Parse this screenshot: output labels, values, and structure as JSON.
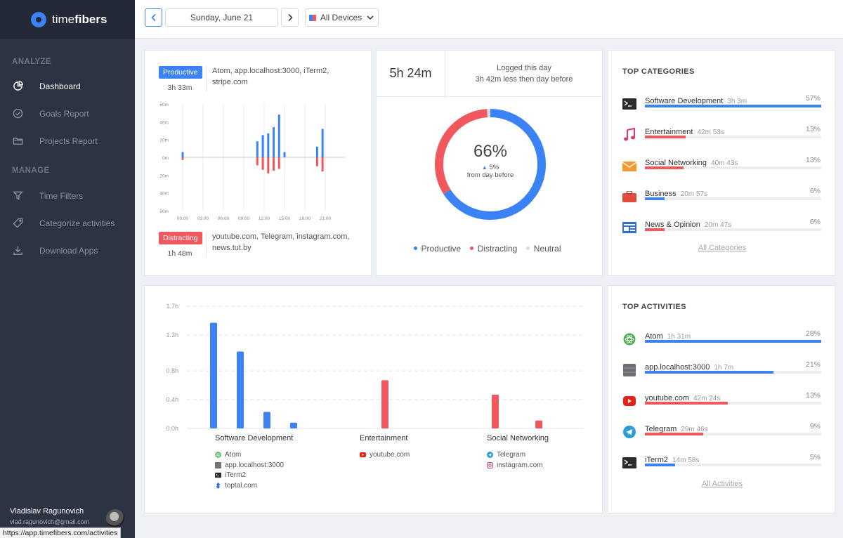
{
  "app": {
    "brand_bold": "time",
    "brand_rest": "fibers"
  },
  "sidebar": {
    "sections": [
      {
        "title": "ANALYZE",
        "items": [
          {
            "label": "Dashboard",
            "icon": "pie-chart-icon"
          },
          {
            "label": "Goals Report",
            "icon": "check-circle-icon"
          },
          {
            "label": "Projects Report",
            "icon": "folder-icon"
          }
        ]
      },
      {
        "title": "MANAGE",
        "items": [
          {
            "label": "Time Filters",
            "icon": "filter-icon"
          },
          {
            "label": "Categorize activities",
            "icon": "tag-icon"
          },
          {
            "label": "Download Apps",
            "icon": "download-icon"
          }
        ]
      }
    ],
    "user": {
      "name": "Vladislav Ragunovich",
      "email": "vlad.ragunovich@gmail.com"
    },
    "status_url": "https://app.timefibers.com/activities"
  },
  "topbar": {
    "date": "Sunday, June 21",
    "device_filter": "All Devices"
  },
  "productivity_card": {
    "productive": {
      "label": "Productive",
      "time": "3h 33m",
      "apps": "Atom, app.localhost:3000, iTerm2, stripe.com"
    },
    "distracting": {
      "label": "Distracting",
      "time": "1h 48m",
      "apps": "youtube.com, Telegram, instagram.com, news.tut.by"
    },
    "y_ticks": [
      "60m",
      "40m",
      "20m",
      "0m",
      "20m",
      "40m",
      "60m"
    ],
    "x_ticks": [
      "00:00",
      "03:00",
      "06:00",
      "09:00",
      "12:00",
      "15:00",
      "18:00",
      "21:00"
    ]
  },
  "chart_data": [
    {
      "type": "bar",
      "x_ticks": [
        "00:00",
        "03:00",
        "06:00",
        "09:00",
        "12:00",
        "15:00",
        "18:00",
        "21:00"
      ],
      "ylim": [
        -60,
        60
      ],
      "series": [
        {
          "name": "Productive",
          "color": "#3b82f6",
          "points": [
            [
              0.0,
              6
            ],
            [
              11.0,
              18
            ],
            [
              11.8,
              25
            ],
            [
              12.6,
              27
            ],
            [
              13.4,
              34
            ],
            [
              14.2,
              48
            ],
            [
              15.0,
              6
            ],
            [
              19.8,
              12
            ],
            [
              20.6,
              32
            ]
          ]
        },
        {
          "name": "Distracting",
          "color": "#f0585e",
          "points": [
            [
              0.0,
              -3
            ],
            [
              11.0,
              -9
            ],
            [
              11.8,
              -14
            ],
            [
              12.6,
              -18
            ],
            [
              13.4,
              -15
            ],
            [
              14.2,
              -13
            ],
            [
              19.8,
              -10
            ],
            [
              20.6,
              -16
            ]
          ]
        }
      ]
    },
    {
      "type": "pie",
      "values": [
        {
          "label": "Productive",
          "value": 66,
          "color": "#3b82f6"
        },
        {
          "label": "Distracting",
          "value": 33,
          "color": "#f0585e"
        },
        {
          "label": "Neutral",
          "value": 1,
          "color": "#d7dade"
        }
      ]
    },
    {
      "type": "bar",
      "ylim": [
        0,
        1.7
      ],
      "y_ticks": [
        "1.7h",
        "1.3h",
        "0.8h",
        "0.4h",
        "0.0h"
      ],
      "y_tick_values": [
        1.7,
        1.3,
        0.8,
        0.4,
        0.0
      ],
      "groups": [
        {
          "label": "Software Development",
          "color": "#3b82f6",
          "values": [
            1.47,
            1.07,
            0.23,
            0.08
          ]
        },
        {
          "label": "Entertainment",
          "color": "#f0585e",
          "values": [
            0.67
          ]
        },
        {
          "label": "Social Networking",
          "color": "#f0585e",
          "values": [
            0.47,
            0.11
          ]
        }
      ]
    }
  ],
  "summary_card": {
    "total": "5h 24m",
    "logged_label": "Logged this day",
    "compare": "3h 42m less then day before",
    "percent": "66%",
    "delta": "5%",
    "delta_label": "from day before",
    "legend": [
      {
        "label": "Productive",
        "color": "#3b82f6"
      },
      {
        "label": "Distracting",
        "color": "#f0585e"
      },
      {
        "label": "Neutral",
        "color": "#d7dade"
      }
    ]
  },
  "top_categories": {
    "title": "TOP CATEGORIES",
    "items": [
      {
        "name": "Software Development",
        "time": "3h 3m",
        "pct": "57%",
        "fraction": 1.0,
        "color": "#3b82f6",
        "icon": "terminal-icon"
      },
      {
        "name": "Entertainment",
        "time": "42m 53s",
        "pct": "13%",
        "fraction": 0.23,
        "color": "#f0585e",
        "icon": "music-note-icon"
      },
      {
        "name": "Social Networking",
        "time": "40m 43s",
        "pct": "13%",
        "fraction": 0.22,
        "color": "#f0585e",
        "icon": "envelope-icon"
      },
      {
        "name": "Business",
        "time": "20m 57s",
        "pct": "6%",
        "fraction": 0.11,
        "color": "#3b82f6",
        "icon": "briefcase-icon"
      },
      {
        "name": "News & Opinion",
        "time": "20m 47s",
        "pct": "6%",
        "fraction": 0.11,
        "color": "#f0585e",
        "icon": "newspaper-icon"
      }
    ],
    "link": "All Categories"
  },
  "top_activities": {
    "title": "TOP ACTIVITIES",
    "items": [
      {
        "name": "Atom",
        "time": "1h 31m",
        "pct": "28%",
        "fraction": 1.0,
        "color": "#3b82f6",
        "icon": "atom-icon"
      },
      {
        "name": "app.localhost:3000",
        "time": "1h 7m",
        "pct": "21%",
        "fraction": 0.73,
        "color": "#3b82f6",
        "icon": "server-icon"
      },
      {
        "name": "youtube.com",
        "time": "42m 24s",
        "pct": "13%",
        "fraction": 0.47,
        "color": "#f0585e",
        "icon": "youtube-icon"
      },
      {
        "name": "Telegram",
        "time": "29m 46s",
        "pct": "9%",
        "fraction": 0.33,
        "color": "#f0585e",
        "icon": "telegram-icon"
      },
      {
        "name": "iTerm2",
        "time": "14m 58s",
        "pct": "5%",
        "fraction": 0.17,
        "color": "#3b82f6",
        "icon": "terminal-icon"
      }
    ],
    "link": "All Activities"
  },
  "bottom_chart": {
    "groups": [
      {
        "label": "Software Development",
        "apps": [
          {
            "name": "Atom",
            "icon": "atom-icon"
          },
          {
            "name": "app.localhost:3000",
            "icon": "server-icon"
          },
          {
            "name": "iTerm2",
            "icon": "terminal-icon"
          },
          {
            "name": "toptal.com",
            "icon": "toptal-icon"
          }
        ]
      },
      {
        "label": "Entertainment",
        "apps": [
          {
            "name": "youtube.com",
            "icon": "youtube-icon"
          }
        ]
      },
      {
        "label": "Social Networking",
        "apps": [
          {
            "name": "Telegram",
            "icon": "telegram-icon"
          },
          {
            "name": "instagram.com",
            "icon": "instagram-icon"
          }
        ]
      }
    ]
  }
}
